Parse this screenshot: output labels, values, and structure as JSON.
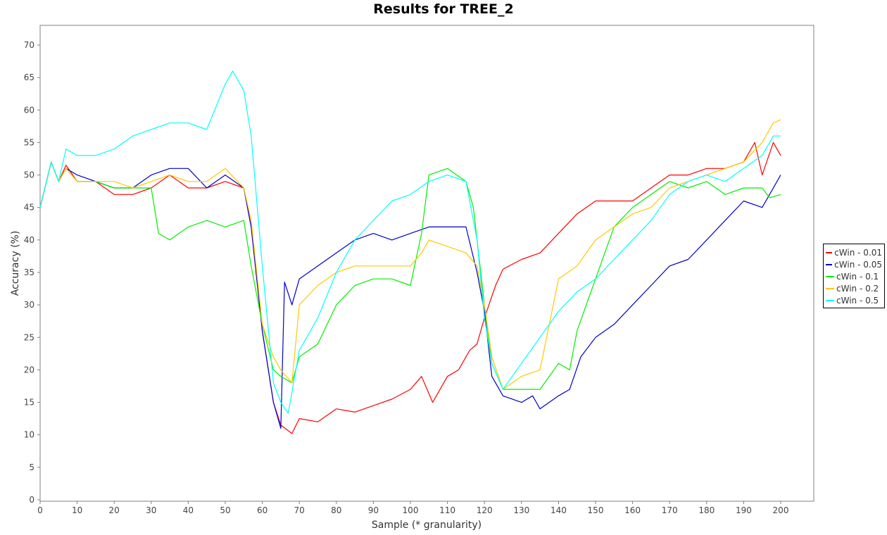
{
  "chart_data": {
    "type": "line",
    "title": "Results for TREE_2",
    "xlabel": "Sample (* granularity)",
    "ylabel": "Accuracy (%)",
    "xlim": [
      0,
      210
    ],
    "ylim": [
      0,
      73
    ],
    "xticks": [
      0,
      10,
      20,
      30,
      40,
      50,
      60,
      70,
      80,
      90,
      100,
      110,
      120,
      130,
      140,
      150,
      160,
      170,
      180,
      190,
      200
    ],
    "yticks": [
      0,
      5,
      10,
      15,
      20,
      25,
      30,
      35,
      40,
      45,
      50,
      55,
      60,
      65,
      70
    ],
    "grid": false,
    "legend_position": "right",
    "series": [
      {
        "name": "cWin - 0.01",
        "color": "#ff0000",
        "points": [
          [
            0,
            45
          ],
          [
            3,
            52
          ],
          [
            5,
            49
          ],
          [
            7,
            51.5
          ],
          [
            10,
            49
          ],
          [
            15,
            49
          ],
          [
            20,
            47
          ],
          [
            25,
            47
          ],
          [
            30,
            48
          ],
          [
            35,
            50
          ],
          [
            40,
            48
          ],
          [
            45,
            48
          ],
          [
            50,
            49
          ],
          [
            55,
            48
          ],
          [
            57,
            42
          ],
          [
            60,
            26
          ],
          [
            63,
            15
          ],
          [
            65,
            11.5
          ],
          [
            68,
            10.2
          ],
          [
            70,
            12.5
          ],
          [
            75,
            12
          ],
          [
            80,
            14
          ],
          [
            85,
            13.5
          ],
          [
            90,
            14.5
          ],
          [
            95,
            15.5
          ],
          [
            100,
            17
          ],
          [
            103,
            19
          ],
          [
            106,
            15
          ],
          [
            110,
            19
          ],
          [
            113,
            20
          ],
          [
            116,
            23
          ],
          [
            118,
            24
          ],
          [
            120,
            28
          ],
          [
            123,
            33
          ],
          [
            125,
            35.5
          ],
          [
            130,
            37
          ],
          [
            135,
            38
          ],
          [
            140,
            41
          ],
          [
            145,
            44
          ],
          [
            150,
            46
          ],
          [
            155,
            46
          ],
          [
            160,
            46
          ],
          [
            165,
            48
          ],
          [
            170,
            50
          ],
          [
            175,
            50
          ],
          [
            180,
            51
          ],
          [
            185,
            51
          ],
          [
            190,
            52
          ],
          [
            193,
            55
          ],
          [
            195,
            50
          ],
          [
            198,
            55
          ],
          [
            200,
            53
          ]
        ]
      },
      {
        "name": "cWin - 0.05",
        "color": "#0000cc",
        "points": [
          [
            0,
            45
          ],
          [
            3,
            52
          ],
          [
            5,
            49
          ],
          [
            7,
            51
          ],
          [
            10,
            50
          ],
          [
            15,
            49
          ],
          [
            20,
            48
          ],
          [
            25,
            48
          ],
          [
            30,
            50
          ],
          [
            35,
            51
          ],
          [
            40,
            51
          ],
          [
            45,
            48
          ],
          [
            50,
            50
          ],
          [
            55,
            48
          ],
          [
            57,
            42
          ],
          [
            60,
            26
          ],
          [
            63,
            15
          ],
          [
            65,
            11
          ],
          [
            66,
            33.5
          ],
          [
            68,
            30
          ],
          [
            70,
            34
          ],
          [
            75,
            36
          ],
          [
            80,
            38
          ],
          [
            85,
            40
          ],
          [
            90,
            41
          ],
          [
            95,
            40
          ],
          [
            100,
            41
          ],
          [
            105,
            42
          ],
          [
            110,
            42
          ],
          [
            115,
            42
          ],
          [
            118,
            35
          ],
          [
            120,
            29
          ],
          [
            122,
            19
          ],
          [
            125,
            16
          ],
          [
            130,
            15
          ],
          [
            133,
            16
          ],
          [
            135,
            14
          ],
          [
            140,
            16
          ],
          [
            143,
            17
          ],
          [
            146,
            22
          ],
          [
            150,
            25
          ],
          [
            155,
            27
          ],
          [
            160,
            30
          ],
          [
            165,
            33
          ],
          [
            170,
            36
          ],
          [
            175,
            37
          ],
          [
            180,
            40
          ],
          [
            185,
            43
          ],
          [
            190,
            46
          ],
          [
            195,
            45
          ],
          [
            197,
            47
          ],
          [
            200,
            50
          ]
        ]
      },
      {
        "name": "cWin - 0.1",
        "color": "#00ee00",
        "points": [
          [
            0,
            45
          ],
          [
            3,
            52
          ],
          [
            5,
            49
          ],
          [
            7,
            51
          ],
          [
            10,
            49
          ],
          [
            15,
            49
          ],
          [
            20,
            48
          ],
          [
            25,
            48
          ],
          [
            30,
            48
          ],
          [
            32,
            41
          ],
          [
            35,
            40
          ],
          [
            40,
            42
          ],
          [
            45,
            43
          ],
          [
            50,
            42
          ],
          [
            55,
            43
          ],
          [
            57,
            36
          ],
          [
            60,
            27
          ],
          [
            63,
            20
          ],
          [
            65,
            19
          ],
          [
            68,
            18
          ],
          [
            70,
            22
          ],
          [
            75,
            24
          ],
          [
            80,
            30
          ],
          [
            85,
            33
          ],
          [
            90,
            34
          ],
          [
            95,
            34
          ],
          [
            100,
            33
          ],
          [
            103,
            41
          ],
          [
            105,
            50
          ],
          [
            110,
            51
          ],
          [
            115,
            49
          ],
          [
            117,
            45
          ],
          [
            120,
            30
          ],
          [
            122,
            21
          ],
          [
            125,
            17
          ],
          [
            130,
            17
          ],
          [
            135,
            17
          ],
          [
            140,
            21
          ],
          [
            143,
            20
          ],
          [
            145,
            26
          ],
          [
            150,
            34
          ],
          [
            155,
            42
          ],
          [
            160,
            45
          ],
          [
            165,
            47
          ],
          [
            170,
            49
          ],
          [
            175,
            48
          ],
          [
            180,
            49
          ],
          [
            185,
            47
          ],
          [
            190,
            48
          ],
          [
            195,
            48
          ],
          [
            197,
            46.5
          ],
          [
            200,
            47
          ]
        ]
      },
      {
        "name": "cWin - 0.2",
        "color": "#ffc800",
        "points": [
          [
            0,
            45
          ],
          [
            3,
            52
          ],
          [
            5,
            49
          ],
          [
            7,
            51
          ],
          [
            10,
            49
          ],
          [
            15,
            49
          ],
          [
            20,
            49
          ],
          [
            25,
            48
          ],
          [
            30,
            49
          ],
          [
            35,
            50
          ],
          [
            40,
            49
          ],
          [
            45,
            49
          ],
          [
            50,
            51
          ],
          [
            55,
            48
          ],
          [
            57,
            43
          ],
          [
            60,
            27
          ],
          [
            63,
            22
          ],
          [
            65,
            20
          ],
          [
            68,
            18
          ],
          [
            70,
            30
          ],
          [
            75,
            33
          ],
          [
            80,
            35
          ],
          [
            85,
            36
          ],
          [
            90,
            36
          ],
          [
            95,
            36
          ],
          [
            100,
            36
          ],
          [
            103,
            38
          ],
          [
            105,
            40
          ],
          [
            110,
            39
          ],
          [
            115,
            38
          ],
          [
            118,
            36
          ],
          [
            120,
            30
          ],
          [
            122,
            22
          ],
          [
            125,
            17
          ],
          [
            130,
            19
          ],
          [
            135,
            20
          ],
          [
            140,
            34
          ],
          [
            145,
            36
          ],
          [
            150,
            40
          ],
          [
            155,
            42
          ],
          [
            160,
            44
          ],
          [
            165,
            45
          ],
          [
            170,
            48
          ],
          [
            175,
            49
          ],
          [
            180,
            50
          ],
          [
            185,
            51
          ],
          [
            190,
            52
          ],
          [
            195,
            55
          ],
          [
            198,
            58
          ],
          [
            200,
            58.5
          ]
        ]
      },
      {
        "name": "cWin - 0.5",
        "color": "#00ffff",
        "points": [
          [
            0,
            45
          ],
          [
            3,
            52
          ],
          [
            5,
            49
          ],
          [
            7,
            54
          ],
          [
            10,
            53
          ],
          [
            15,
            53
          ],
          [
            20,
            54
          ],
          [
            25,
            56
          ],
          [
            30,
            57
          ],
          [
            35,
            58
          ],
          [
            40,
            58
          ],
          [
            45,
            57
          ],
          [
            50,
            64
          ],
          [
            52,
            66
          ],
          [
            55,
            63
          ],
          [
            57,
            56
          ],
          [
            60,
            36
          ],
          [
            63,
            18
          ],
          [
            65,
            15
          ],
          [
            67,
            13.3
          ],
          [
            70,
            23
          ],
          [
            75,
            28
          ],
          [
            80,
            35
          ],
          [
            85,
            40
          ],
          [
            90,
            43
          ],
          [
            95,
            46
          ],
          [
            100,
            47
          ],
          [
            105,
            49
          ],
          [
            110,
            50
          ],
          [
            115,
            49
          ],
          [
            118,
            40
          ],
          [
            120,
            28
          ],
          [
            122,
            21
          ],
          [
            125,
            17
          ],
          [
            130,
            21
          ],
          [
            135,
            25
          ],
          [
            140,
            29
          ],
          [
            145,
            32
          ],
          [
            150,
            34
          ],
          [
            155,
            37
          ],
          [
            160,
            40
          ],
          [
            165,
            43
          ],
          [
            170,
            47
          ],
          [
            175,
            49
          ],
          [
            180,
            50
          ],
          [
            185,
            49
          ],
          [
            190,
            51
          ],
          [
            195,
            53
          ],
          [
            198,
            56
          ],
          [
            200,
            56
          ]
        ]
      }
    ]
  }
}
